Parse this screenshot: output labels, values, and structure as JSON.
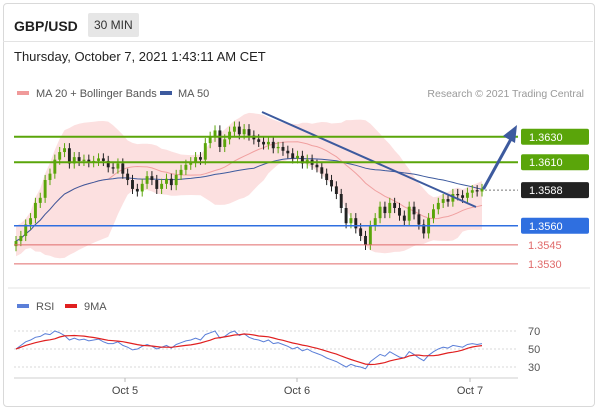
{
  "header": {
    "symbol": "GBP/USD",
    "interval": "30 MIN",
    "timestamp": "Thursday, October 7, 2021 1:43:11 AM CET"
  },
  "legend": {
    "ma20": "MA 20 + Bollinger Bands",
    "ma50": "MA 50",
    "credit": "Research © 2021 Trading Central",
    "rsi": "RSI",
    "ma9": "9MA"
  },
  "colors": {
    "green": "#5aa50a",
    "blue": "#2f6fe0",
    "red": "#e06a6a",
    "dark": "#222222",
    "trend": "#3d5a9e",
    "band": "#fbdada",
    "candle_up": "#5aa50a",
    "candle_down": "#222222"
  },
  "chart_data": [
    {
      "type": "candlestick",
      "title": "GBP/USD",
      "x_labels": [
        "Oct 5",
        "Oct 6",
        "Oct 7"
      ],
      "ylim": [
        1.3515,
        1.3655
      ],
      "levels": [
        {
          "value": 1.363,
          "label": "1.3630",
          "color": "#5aa50a",
          "kind": "resistance"
        },
        {
          "value": 1.361,
          "label": "1.3610",
          "color": "#5aa50a",
          "kind": "resistance"
        },
        {
          "value": 1.3588,
          "label": "1.3588",
          "color": "#222222",
          "kind": "current"
        },
        {
          "value": 1.356,
          "label": "1.3560",
          "color": "#2f6fe0",
          "kind": "pivot"
        },
        {
          "value": 1.3545,
          "label": "1.3545",
          "color": "#e06a6a",
          "kind": "support"
        },
        {
          "value": 1.353,
          "label": "1.3530",
          "color": "#e06a6a",
          "kind": "support"
        }
      ],
      "series": [
        {
          "name": "MA 20 + Bollinger Bands",
          "color": "#e88a8a"
        },
        {
          "name": "MA 50",
          "color": "#3d5a9e"
        }
      ],
      "close": [
        1.3548,
        1.3552,
        1.3561,
        1.3566,
        1.3578,
        1.3582,
        1.3596,
        1.3601,
        1.3612,
        1.3618,
        1.3621,
        1.3609,
        1.3614,
        1.3611,
        1.3612,
        1.361,
        1.3611,
        1.3613,
        1.3611,
        1.3606,
        1.3605,
        1.3609,
        1.3601,
        1.3596,
        1.3589,
        1.3587,
        1.3593,
        1.3599,
        1.3596,
        1.3589,
        1.3593,
        1.3597,
        1.3592,
        1.36,
        1.3604,
        1.3608,
        1.361,
        1.3614,
        1.3612,
        1.3625,
        1.363,
        1.3635,
        1.3622,
        1.3628,
        1.3634,
        1.3638,
        1.3632,
        1.3636,
        1.3631,
        1.3628,
        1.3626,
        1.3624,
        1.3626,
        1.3621,
        1.3622,
        1.3619,
        1.3617,
        1.3613,
        1.3615,
        1.3609,
        1.3612,
        1.3608,
        1.3606,
        1.3601,
        1.3596,
        1.3591,
        1.3585,
        1.3574,
        1.3562,
        1.3566,
        1.3558,
        1.3552,
        1.3545,
        1.356,
        1.3566,
        1.3575,
        1.357,
        1.3578,
        1.3574,
        1.3568,
        1.3564,
        1.3575,
        1.3569,
        1.3561,
        1.3554,
        1.3566,
        1.3573,
        1.3578,
        1.3581,
        1.3579,
        1.3585,
        1.3584,
        1.3582,
        1.3586,
        1.3588,
        1.3587,
        1.3589
      ],
      "rsi_labels": [
        "70",
        "50",
        "30"
      ],
      "rsi": [
        50,
        54,
        58,
        60,
        63,
        64,
        67,
        66,
        70,
        68,
        65,
        60,
        62,
        60,
        61,
        59,
        60,
        61,
        58,
        56,
        56,
        58,
        54,
        52,
        49,
        50,
        53,
        55,
        53,
        50,
        52,
        54,
        51,
        55,
        57,
        59,
        60,
        62,
        60,
        66,
        68,
        70,
        62,
        64,
        68,
        70,
        65,
        67,
        63,
        61,
        60,
        58,
        60,
        56,
        57,
        55,
        53,
        50,
        52,
        48,
        50,
        47,
        45,
        43,
        40,
        38,
        36,
        33,
        30,
        33,
        31,
        30,
        28,
        36,
        40,
        44,
        42,
        47,
        44,
        41,
        40,
        47,
        44,
        40,
        37,
        43,
        47,
        50,
        52,
        51,
        54,
        53,
        52,
        55,
        56,
        55,
        56
      ],
      "rsi_ylim": [
        20,
        80
      ]
    }
  ]
}
